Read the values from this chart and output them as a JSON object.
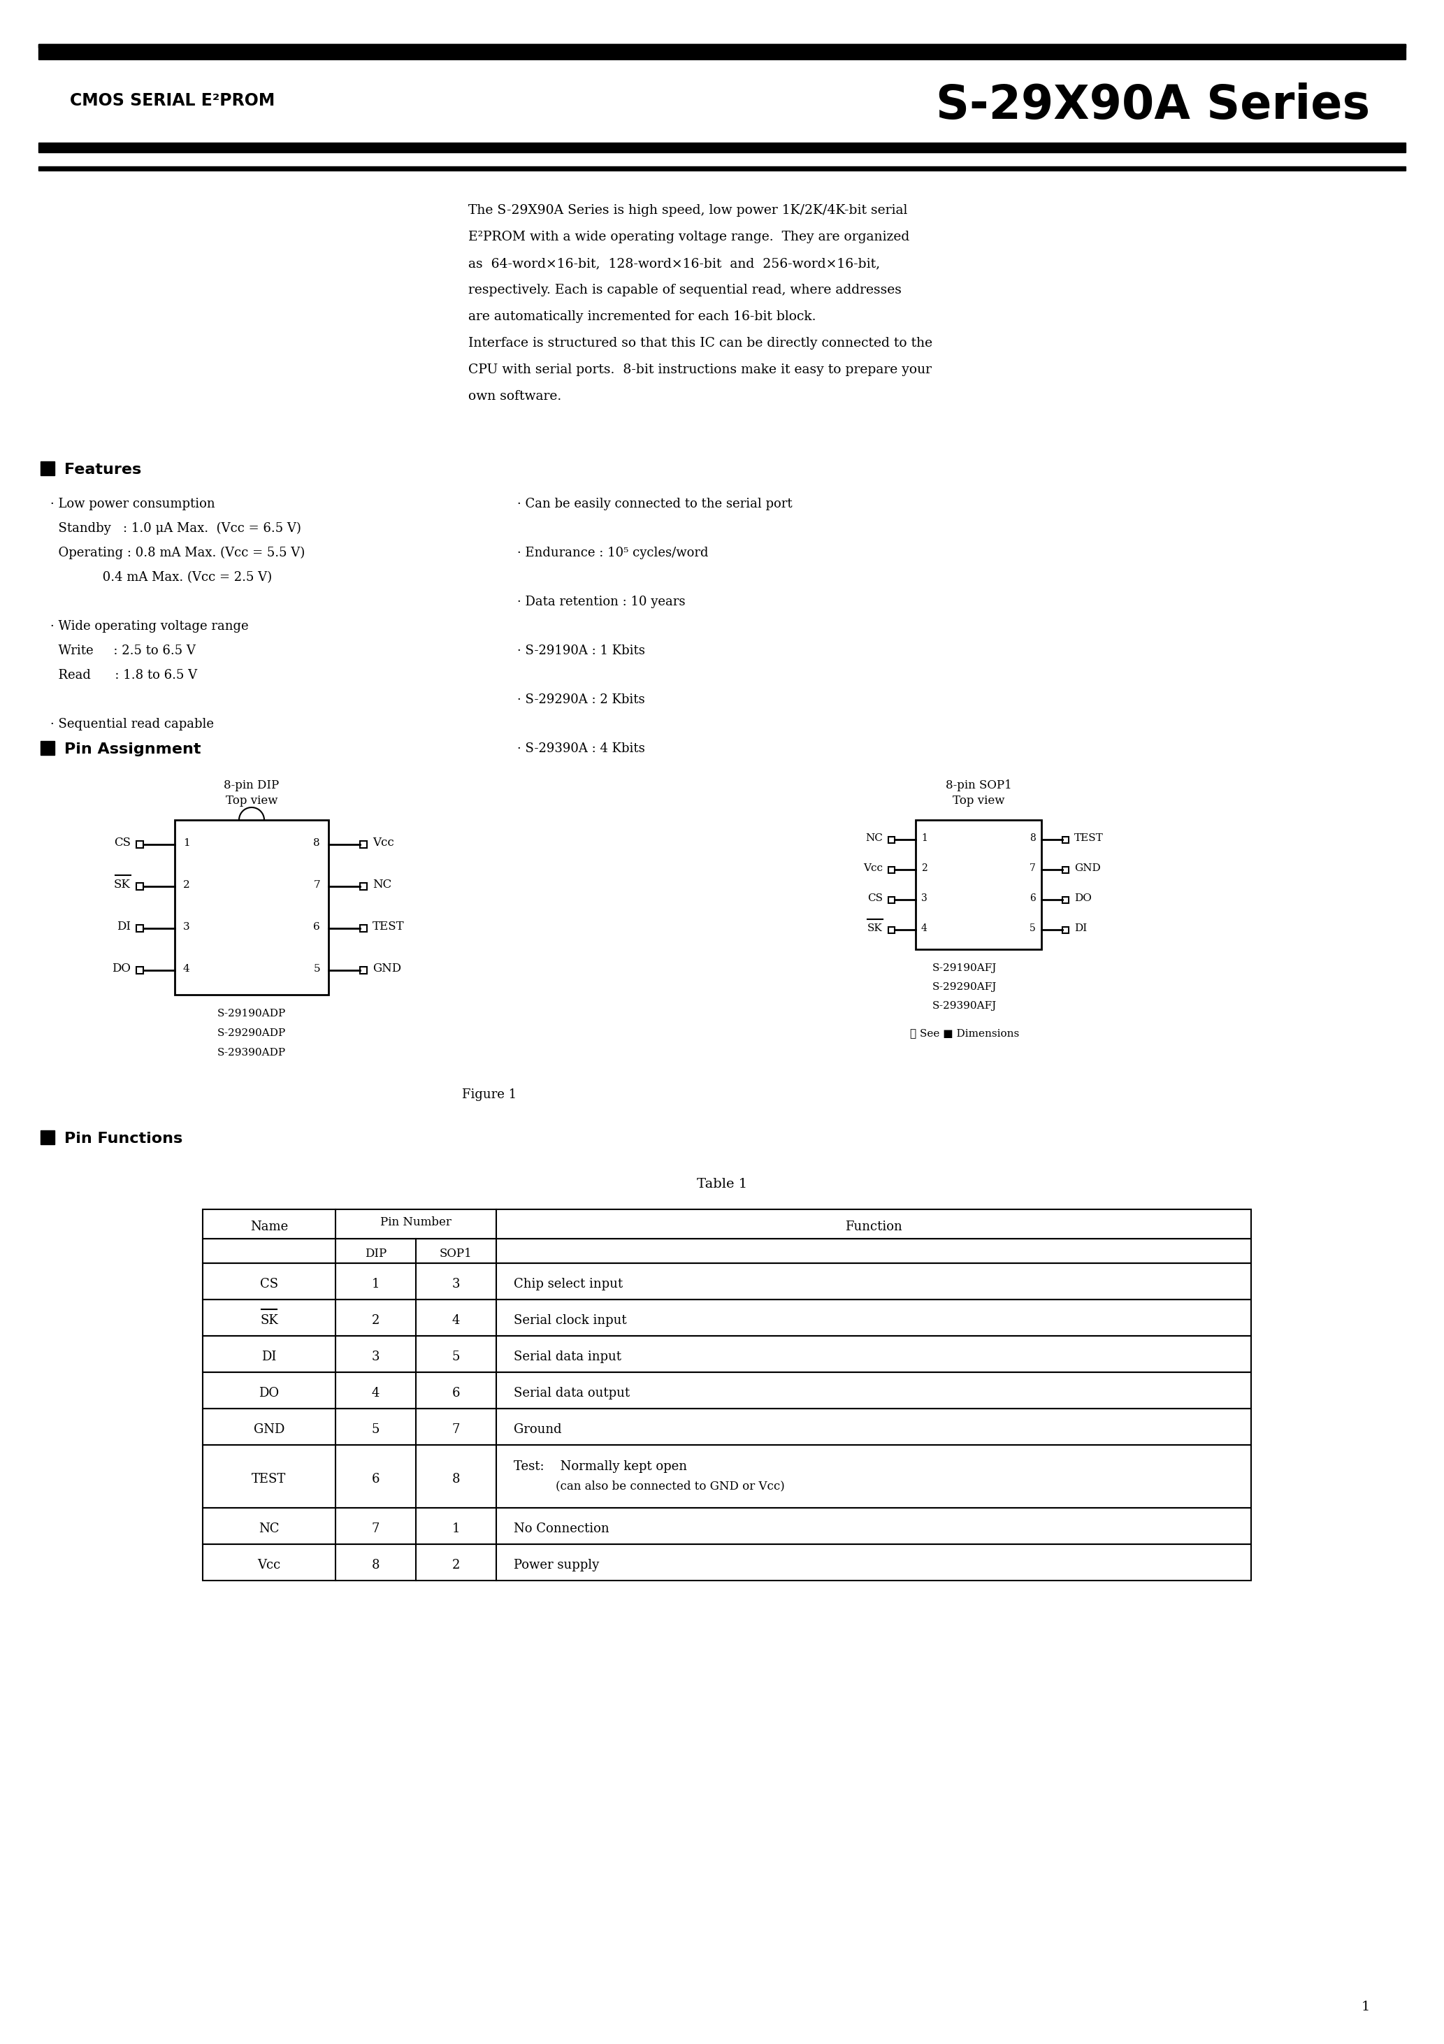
{
  "bg_color": "#ffffff",
  "title_left": "CMOS SERIAL E²PROM",
  "title_right": "S-29X90A Series",
  "intro_lines": [
    "The S-29X90A Series is high speed, low power 1K/2K/4K-bit serial",
    "E²PROM with a wide operating voltage range.  They are organized",
    "as  64-word×16-bit,  128-word×16-bit  and  256-word×16-bit,",
    "respectively. Each is capable of sequential read, where addresses",
    "are automatically incremented for each 16-bit block.",
    "Interface is structured so that this IC can be directly connected to the",
    "CPU with serial ports.  8-bit instructions make it easy to prepare your",
    "own software."
  ],
  "features_title": "Features",
  "feat_left": [
    "· Low power consumption",
    "  Standby   : 1.0 μA Max.  (Vcc = 6.5 V)",
    "  Operating : 0.8 mA Max. (Vcc = 5.5 V)",
    "             0.4 mA Max. (Vcc = 2.5 V)",
    "",
    "· Wide operating voltage range",
    "  Write     : 2.5 to 6.5 V",
    "  Read      : 1.8 to 6.5 V",
    "",
    "· Sequential read capable"
  ],
  "feat_right": [
    "· Can be easily connected to the serial port",
    "",
    "· Endurance : 10⁵ cycles/word",
    "",
    "· Data retention : 10 years",
    "",
    "· S-29190A : 1 Kbits",
    "",
    "· S-29290A : 2 Kbits",
    "",
    "· S-29390A : 4 Kbits"
  ],
  "pin_assign_title": "Pin Assignment",
  "dip_left_labels": [
    "CS",
    "SK",
    "DI",
    "DO"
  ],
  "dip_right_labels": [
    "Vcc",
    "NC",
    "TEST",
    "GND"
  ],
  "dip_left_nums": [
    "1",
    "2",
    "3",
    "4"
  ],
  "dip_right_nums": [
    "8",
    "7",
    "6",
    "5"
  ],
  "dip_names": [
    "S-29190ADP",
    "S-29290ADP",
    "S-29390ADP"
  ],
  "sop_left_labels": [
    "NC",
    "Vcc",
    "CS",
    "SK"
  ],
  "sop_right_labels": [
    "TEST",
    "GND",
    "DO",
    "DI"
  ],
  "sop_left_nums": [
    "1",
    "2",
    "3",
    "4"
  ],
  "sop_right_nums": [
    "8",
    "7",
    "6",
    "5"
  ],
  "sop_names": [
    "S-29190AFJ",
    "S-29290AFJ",
    "S-29390AFJ"
  ],
  "sop_note": "※ See ■ Dimensions",
  "figure_label": "Figure 1",
  "pin_func_title": "Pin Functions",
  "table_title": "Table 1",
  "table_rows": [
    [
      "CS",
      "1",
      "3",
      "Chip select input",
      false
    ],
    [
      "SK",
      "2",
      "4",
      "Serial clock input",
      true
    ],
    [
      "DI",
      "3",
      "5",
      "Serial data input",
      false
    ],
    [
      "DO",
      "4",
      "6",
      "Serial data output",
      false
    ],
    [
      "GND",
      "5",
      "7",
      "Ground",
      false
    ],
    [
      "TEST",
      "6",
      "8",
      "Test:    Normally kept open|(can also be connected to GND or Vcc)",
      false
    ],
    [
      "NC",
      "7",
      "1",
      "No Connection",
      false
    ],
    [
      "Vcc",
      "8",
      "2",
      "Power supply",
      false
    ]
  ],
  "page_num": "1"
}
